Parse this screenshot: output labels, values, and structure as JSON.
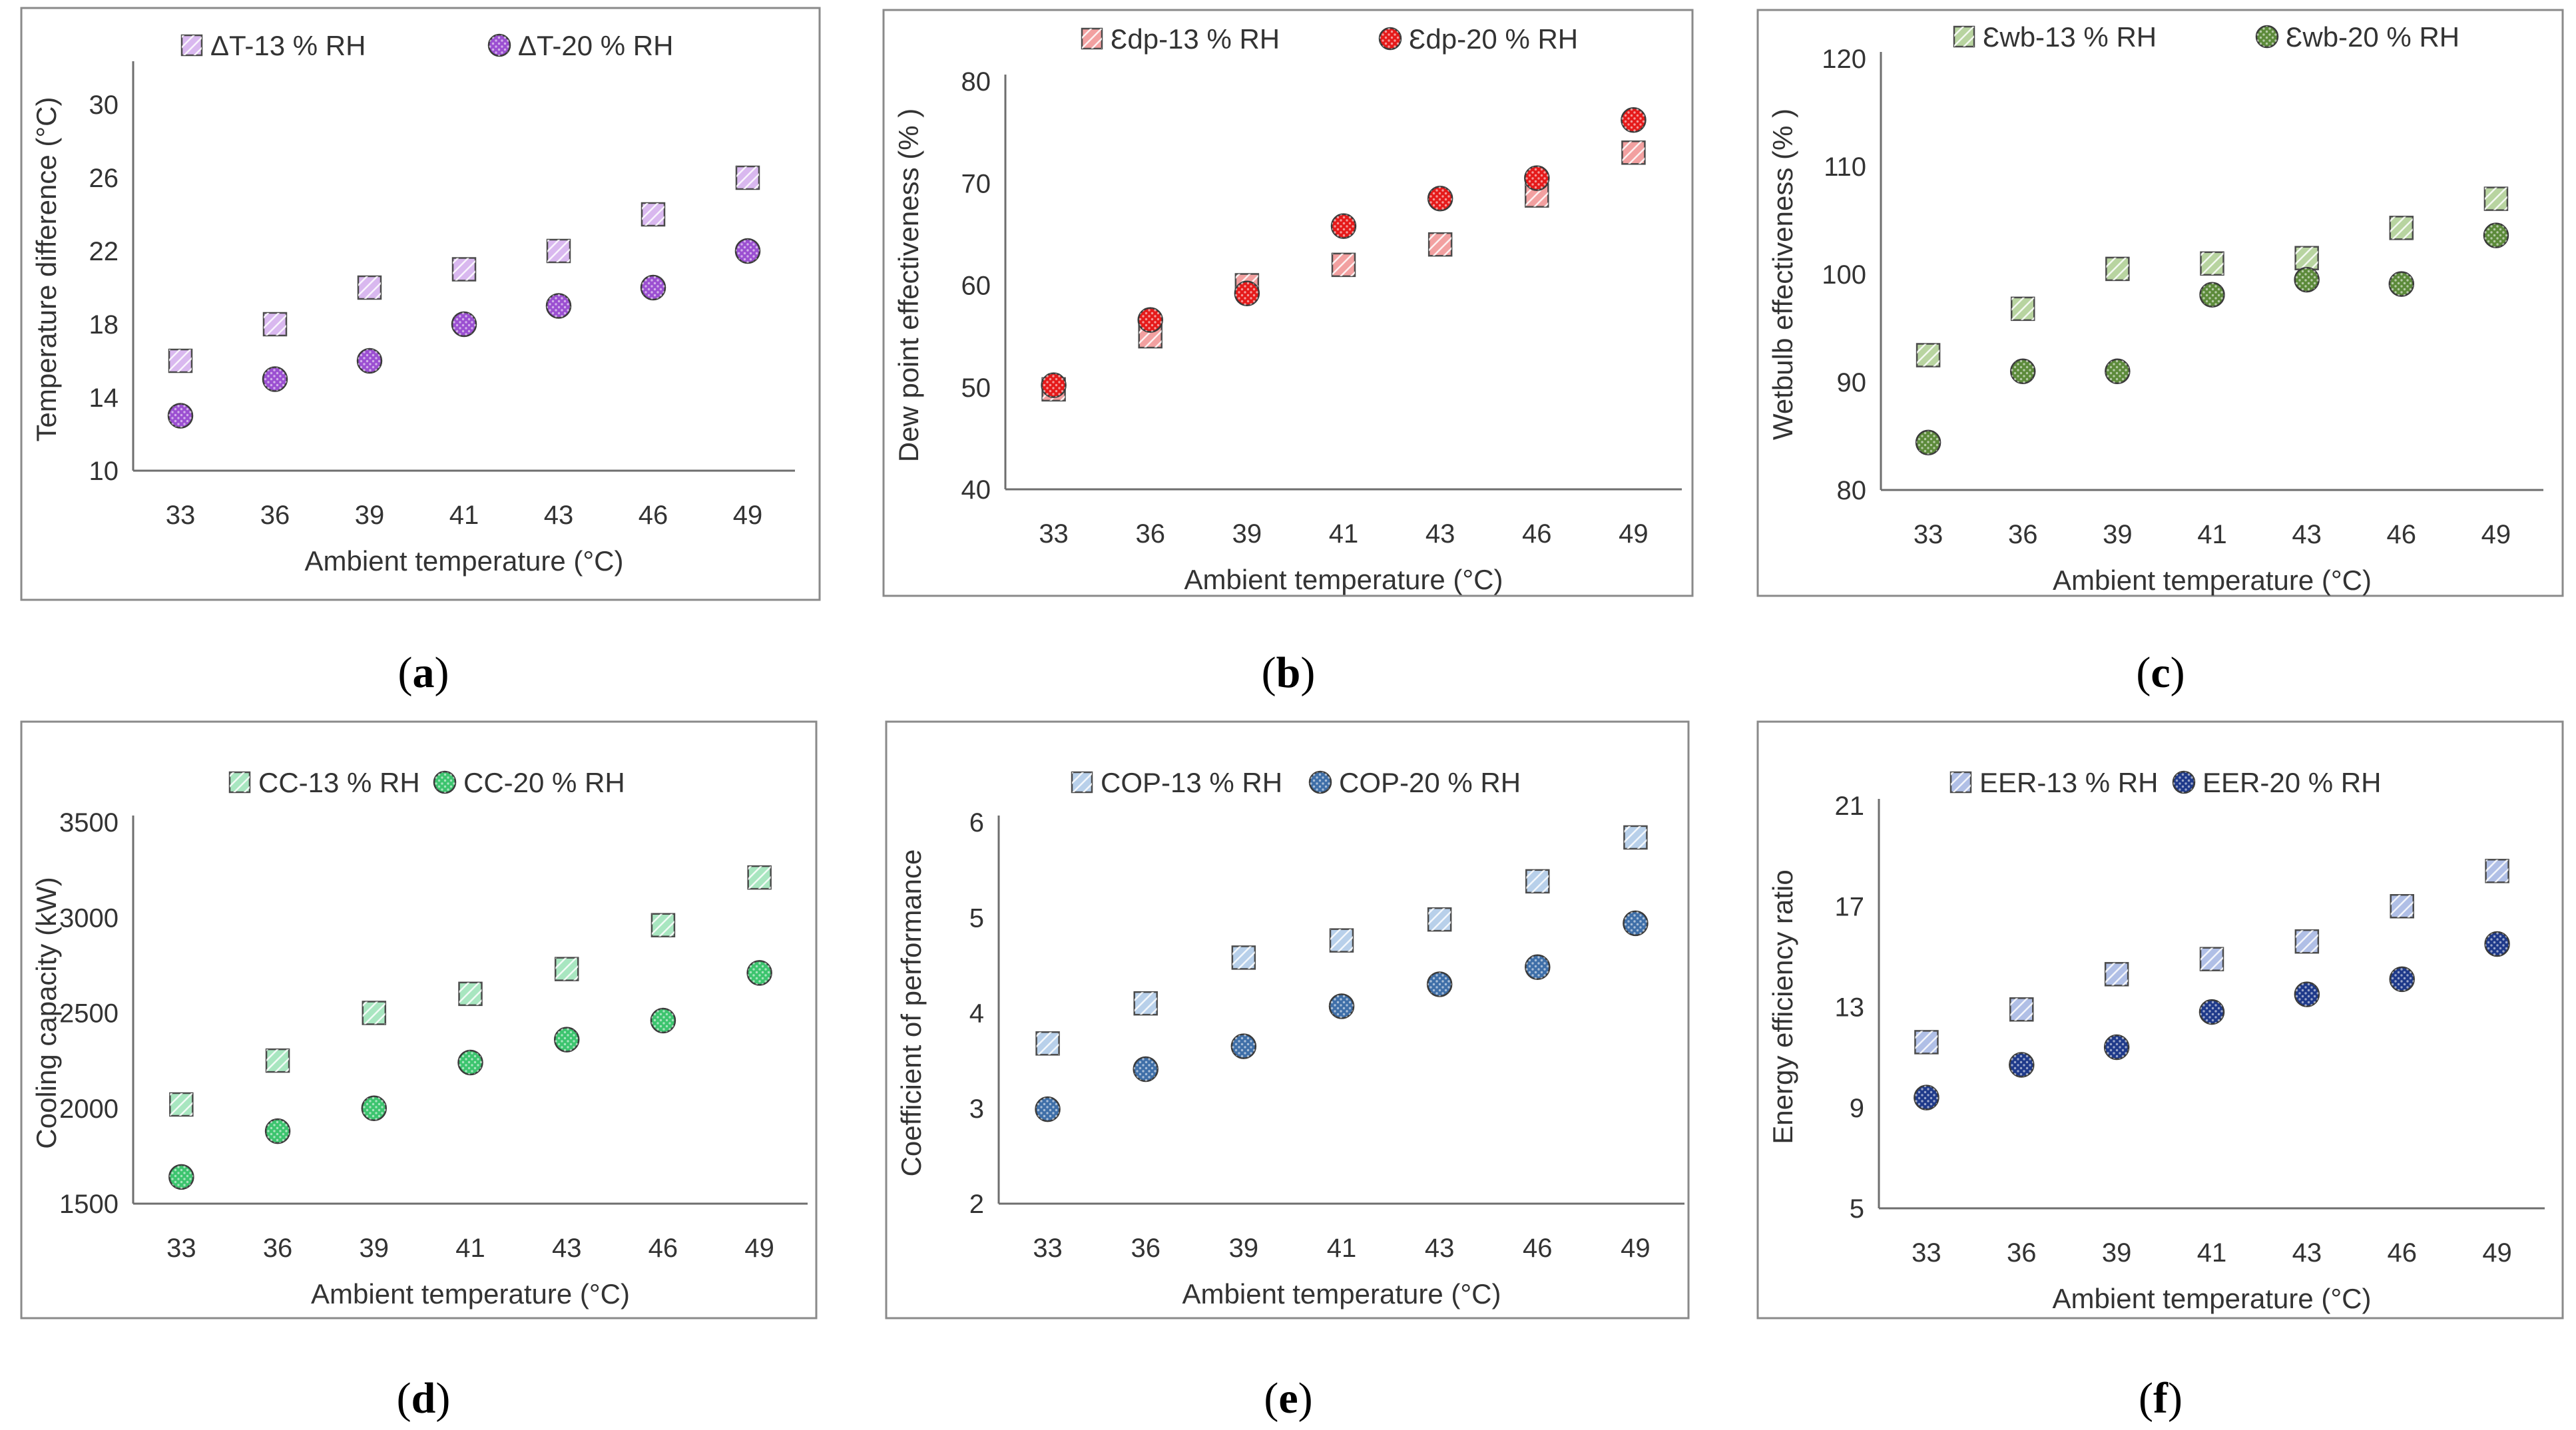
{
  "chart_data": [
    {
      "type": "scatter",
      "caption": "a",
      "ylabel": "Temperature difference (°C)",
      "xlabel": "Ambient temperature (°C)",
      "categories": [
        "33",
        "36",
        "39",
        "41",
        "43",
        "46",
        "49"
      ],
      "yticks": [
        10,
        14,
        18,
        22,
        26,
        30
      ],
      "ylim": [
        10,
        32
      ],
      "legend_position": "top",
      "series": [
        {
          "name": "ΔT-13 % RH",
          "marker": "square",
          "color": "#d9b8ef",
          "values": [
            16,
            18,
            20,
            21,
            22,
            24,
            26
          ]
        },
        {
          "name": "ΔT-20 % RH",
          "marker": "circle",
          "color": "#9b4fd1",
          "values": [
            13,
            15,
            16,
            18,
            19,
            20,
            22
          ]
        }
      ]
    },
    {
      "type": "scatter",
      "caption": "b",
      "ylabel": "Dew point effectiveness (% )",
      "xlabel": "Ambient temperature (°C)",
      "categories": [
        "33",
        "36",
        "39",
        "41",
        "43",
        "46",
        "49"
      ],
      "yticks": [
        40,
        50,
        60,
        70,
        80
      ],
      "ylim": [
        40,
        80
      ],
      "legend_position": "top",
      "series": [
        {
          "name": "Ɛdp-13 % RH",
          "marker": "square",
          "color": "#f2a0a0",
          "values": [
            49.8,
            55,
            60,
            62,
            64,
            68.8,
            73
          ]
        },
        {
          "name": "Ɛdp-20 % RH",
          "marker": "circle",
          "color": "#e51a1a",
          "values": [
            50.2,
            56.6,
            59.2,
            65.8,
            68.5,
            70.5,
            76.2
          ]
        }
      ]
    },
    {
      "type": "scatter",
      "caption": "c",
      "ylabel": "Wetbulb effectiveness (% )",
      "xlabel": "Ambient temperature (°C)",
      "categories": [
        "33",
        "36",
        "39",
        "41",
        "43",
        "46",
        "49"
      ],
      "yticks": [
        80,
        90,
        100,
        110,
        120
      ],
      "ylim": [
        80,
        120
      ],
      "legend_position": "top",
      "series": [
        {
          "name": "Ɛwb-13 % RH",
          "marker": "square",
          "color": "#b8d4a0",
          "values": [
            92.5,
            96.8,
            100.5,
            101,
            101.5,
            104.3,
            107
          ]
        },
        {
          "name": "Ɛwb-20 % RH",
          "marker": "circle",
          "color": "#5c8a3a",
          "values": [
            84.4,
            91,
            91,
            98.1,
            99.5,
            99.1,
            103.6
          ]
        }
      ]
    },
    {
      "type": "scatter",
      "caption": "d",
      "ylabel": "Cooling capacity (kW)",
      "xlabel": "Ambient temperature (°C)",
      "categories": [
        "33",
        "36",
        "39",
        "41",
        "43",
        "46",
        "49"
      ],
      "yticks": [
        1500,
        2000,
        2500,
        3000,
        3500
      ],
      "ylim": [
        1500,
        3500
      ],
      "legend_position": "top",
      "series": [
        {
          "name": "CC-13 % RH",
          "marker": "square",
          "color": "#a8e6c0",
          "values": [
            2020,
            2250,
            2500,
            2600,
            2730,
            2960,
            3210
          ]
        },
        {
          "name": "CC-20 % RH",
          "marker": "circle",
          "color": "#3cc46e",
          "values": [
            1640,
            1880,
            2000,
            2240,
            2360,
            2460,
            2710
          ]
        }
      ]
    },
    {
      "type": "scatter",
      "caption": "e",
      "ylabel": "Coefficient of performance",
      "xlabel": "Ambient temperature (°C)",
      "categories": [
        "33",
        "36",
        "39",
        "41",
        "43",
        "46",
        "49"
      ],
      "yticks": [
        2,
        3,
        4,
        5,
        6
      ],
      "ylim": [
        2,
        6
      ],
      "legend_position": "top",
      "series": [
        {
          "name": "COP-13 % RH",
          "marker": "square",
          "color": "#b8d0ea",
          "values": [
            3.68,
            4.1,
            4.58,
            4.76,
            4.98,
            5.38,
            5.84
          ]
        },
        {
          "name": "COP-20 % RH",
          "marker": "circle",
          "color": "#3f6fa8",
          "values": [
            2.99,
            3.41,
            3.65,
            4.07,
            4.3,
            4.48,
            4.94
          ]
        }
      ]
    },
    {
      "type": "scatter",
      "caption": "f",
      "ylabel": "Energy efficiency ratio",
      "xlabel": "Ambient temperature (°C)",
      "categories": [
        "33",
        "36",
        "39",
        "41",
        "43",
        "46",
        "49"
      ],
      "yticks": [
        5,
        9,
        13,
        17,
        21
      ],
      "ylim": [
        5,
        21
      ],
      "legend_position": "top",
      "series": [
        {
          "name": "EER-13 % RH",
          "marker": "square",
          "color": "#b0bfe6",
          "values": [
            11.6,
            12.9,
            14.3,
            14.9,
            15.6,
            17,
            18.4
          ]
        },
        {
          "name": "EER-20 % RH",
          "marker": "circle",
          "color": "#1f3a8a",
          "values": [
            9.4,
            10.7,
            11.4,
            12.8,
            13.5,
            14.1,
            15.5
          ]
        }
      ]
    }
  ]
}
